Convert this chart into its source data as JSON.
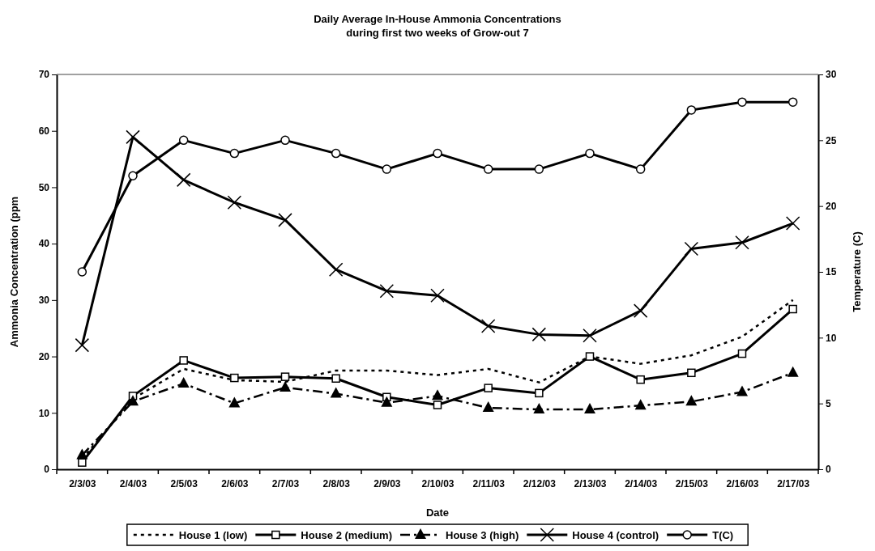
{
  "chart_data": {
    "type": "line",
    "title": "Daily Average In-House Ammonia Concentrations\nduring first two weeks of Grow-out 7",
    "xlabel": "Date",
    "ylabel": "Ammonia Concentration (ppm",
    "y2label": "Temperature (C)",
    "categories": [
      "2/3/03",
      "2/4/03",
      "2/5/03",
      "2/6/03",
      "2/7/03",
      "2/8/03",
      "2/9/03",
      "2/10/03",
      "2/11/03",
      "2/12/03",
      "2/13/03",
      "2/14/03",
      "2/15/03",
      "2/16/03",
      "2/17/03"
    ],
    "ylim": [
      0,
      70
    ],
    "yticks": [
      0,
      10,
      20,
      30,
      40,
      50,
      60,
      70
    ],
    "y2lim": [
      0,
      30
    ],
    "y2ticks": [
      0,
      5,
      10,
      15,
      20,
      25,
      30
    ],
    "grid": false,
    "legend": "bottom",
    "series": [
      {
        "name": "House 1 (low)",
        "color": "#000000",
        "marker": "none",
        "line_style": "dotted",
        "values": [
          1.8,
          12.5,
          17.8,
          15.8,
          15.5,
          17.5,
          17.5,
          16.7,
          17.8,
          15.4,
          20,
          18.7,
          20.2,
          23.5,
          30
        ]
      },
      {
        "name": "House 2 (medium)",
        "color": "#000000",
        "marker": "square",
        "line_style": "solid",
        "values": [
          1.2,
          13,
          19.3,
          16.2,
          16.4,
          16.1,
          12.8,
          11.4,
          14.4,
          13.5,
          20,
          15.9,
          17.1,
          20.5,
          28.4
        ]
      },
      {
        "name": "House 3 (high)",
        "color": "#000000",
        "marker": "triangle",
        "line_style": "dashed",
        "values": [
          2.5,
          12,
          15.2,
          11.7,
          14.5,
          13.4,
          11.8,
          13,
          10.9,
          10.6,
          10.6,
          11.3,
          12,
          13.7,
          17.1
        ]
      },
      {
        "name": "House 4 (control)",
        "color": "#000000",
        "marker": "cross",
        "line_style": "solid",
        "values": [
          22,
          58.9,
          51.3,
          47.3,
          44.2,
          35.4,
          31.6,
          30.8,
          25.4,
          23.9,
          23.7,
          28.1,
          39.1,
          40.2,
          43.6
        ]
      },
      {
        "name": "T(C)",
        "color": "#000000",
        "marker": "circle",
        "line_style": "solid",
        "axis": "y2",
        "values": [
          15,
          22.3,
          25,
          24,
          25,
          24,
          22.8,
          24,
          22.8,
          22.8,
          24,
          22.8,
          27.3,
          27.9,
          27.9
        ]
      }
    ]
  }
}
